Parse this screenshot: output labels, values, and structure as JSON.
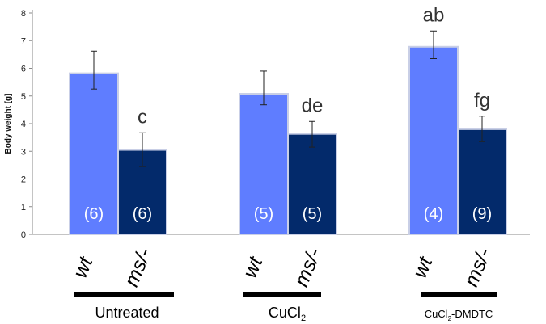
{
  "chart_data": {
    "type": "bar",
    "title": "",
    "xlabel": "",
    "ylabel": "Body weight [g]",
    "ylim": [
      0,
      8
    ],
    "yticks": [
      0,
      1,
      2,
      3,
      4,
      5,
      6,
      7,
      8
    ],
    "groups": [
      {
        "label": "Untreated",
        "label_sub": "",
        "label_suffix": "",
        "bars": [
          {
            "genotype": "wt",
            "value": 5.82,
            "err_high": 6.62,
            "err_low": 5.25,
            "n": "(6)",
            "sig": "",
            "color": "#5f7dff"
          },
          {
            "genotype": "ms/-",
            "value": 3.05,
            "err_high": 3.67,
            "err_low": 2.45,
            "n": "(6)",
            "sig": "c",
            "color": "#032a6b"
          }
        ]
      },
      {
        "label": "CuCl",
        "label_sub": "2",
        "label_suffix": "",
        "bars": [
          {
            "genotype": "wt",
            "value": 5.08,
            "err_high": 5.9,
            "err_low": 4.68,
            "n": "(5)",
            "sig": "",
            "color": "#5f7dff"
          },
          {
            "genotype": "ms/-",
            "value": 3.63,
            "err_high": 4.08,
            "err_low": 3.15,
            "n": "(5)",
            "sig": "de",
            "color": "#032a6b"
          }
        ]
      },
      {
        "label": "CuCl",
        "label_sub": "2",
        "label_suffix": "-DMDTC",
        "bars": [
          {
            "genotype": "wt",
            "value": 6.78,
            "err_high": 7.35,
            "err_low": 6.35,
            "n": "(4)",
            "sig": "ab",
            "color": "#5f7dff"
          },
          {
            "genotype": "ms/-",
            "value": 3.8,
            "err_high": 4.27,
            "err_low": 3.35,
            "n": "(9)",
            "sig": "fg",
            "color": "#032a6b"
          }
        ]
      }
    ]
  }
}
